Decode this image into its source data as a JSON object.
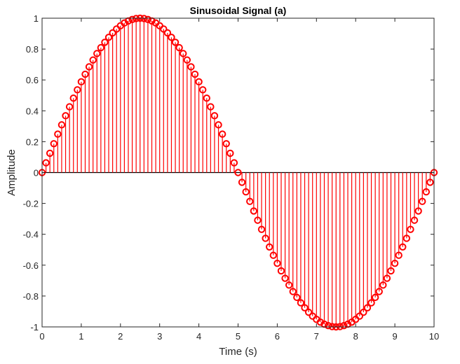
{
  "chart_data": {
    "type": "stem",
    "title": "Sinusoidal Signal (a)",
    "xlabel": "Time (s)",
    "ylabel": "Amplitude",
    "xlim": [
      0,
      10
    ],
    "ylim": [
      -1,
      1
    ],
    "xticks": [
      0,
      1,
      2,
      3,
      4,
      5,
      6,
      7,
      8,
      9,
      10
    ],
    "xtick_labels": [
      "0",
      "1",
      "2",
      "3",
      "4",
      "5",
      "6",
      "7",
      "8",
      "9",
      "10"
    ],
    "yticks": [
      1,
      0.8,
      0.6,
      0.4,
      0.2,
      0,
      -0.2,
      -0.4,
      -0.6,
      -0.8,
      -1
    ],
    "ytick_labels": [
      "1",
      "0.8",
      "0.6",
      "0.4",
      "0.2",
      "0",
      "-0.2",
      "-0.4",
      "-0.6",
      "-0.8",
      "-1"
    ],
    "grid": false,
    "box": true,
    "marker": "circle-open",
    "color": "#ff0000",
    "x": [
      0,
      0.1,
      0.2,
      0.3,
      0.4,
      0.5,
      0.6,
      0.7,
      0.8,
      0.9,
      1,
      1.1,
      1.2,
      1.3,
      1.4,
      1.5,
      1.6,
      1.7,
      1.8,
      1.9,
      2,
      2.1,
      2.2,
      2.3,
      2.4,
      2.5,
      2.6,
      2.7,
      2.8,
      2.9,
      3,
      3.1,
      3.2,
      3.3,
      3.4,
      3.5,
      3.6,
      3.7,
      3.8,
      3.9,
      4,
      4.1,
      4.2,
      4.3,
      4.4,
      4.5,
      4.6,
      4.7,
      4.8,
      4.9,
      5,
      5.1,
      5.2,
      5.3,
      5.4,
      5.5,
      5.6,
      5.7,
      5.8,
      5.9,
      6,
      6.1,
      6.2,
      6.3,
      6.4,
      6.5,
      6.6,
      6.7,
      6.8,
      6.9,
      7,
      7.1,
      7.2,
      7.3,
      7.4,
      7.5,
      7.6,
      7.7,
      7.8,
      7.9,
      8,
      8.1,
      8.2,
      8.3,
      8.4,
      8.5,
      8.6,
      8.7,
      8.8,
      8.9,
      9,
      9.1,
      9.2,
      9.3,
      9.4,
      9.5,
      9.6,
      9.7,
      9.8,
      9.9,
      10
    ],
    "y": [
      0,
      0.063,
      0.125,
      0.187,
      0.249,
      0.309,
      0.368,
      0.426,
      0.482,
      0.536,
      0.588,
      0.637,
      0.685,
      0.729,
      0.771,
      0.809,
      0.844,
      0.876,
      0.905,
      0.93,
      0.951,
      0.969,
      0.982,
      0.992,
      0.998,
      1,
      0.998,
      0.992,
      0.982,
      0.969,
      0.951,
      0.93,
      0.905,
      0.876,
      0.844,
      0.809,
      0.771,
      0.729,
      0.685,
      0.637,
      0.588,
      0.536,
      0.482,
      0.426,
      0.368,
      0.309,
      0.249,
      0.187,
      0.125,
      0.063,
      0,
      -0.063,
      -0.125,
      -0.187,
      -0.249,
      -0.309,
      -0.368,
      -0.426,
      -0.482,
      -0.536,
      -0.588,
      -0.637,
      -0.685,
      -0.729,
      -0.771,
      -0.809,
      -0.844,
      -0.876,
      -0.905,
      -0.93,
      -0.951,
      -0.969,
      -0.982,
      -0.992,
      -0.998,
      -1,
      -0.998,
      -0.992,
      -0.982,
      -0.969,
      -0.951,
      -0.93,
      -0.905,
      -0.876,
      -0.844,
      -0.809,
      -0.771,
      -0.729,
      -0.685,
      -0.637,
      -0.588,
      -0.536,
      -0.482,
      -0.426,
      -0.368,
      -0.309,
      -0.249,
      -0.187,
      -0.125,
      -0.063,
      0
    ]
  }
}
